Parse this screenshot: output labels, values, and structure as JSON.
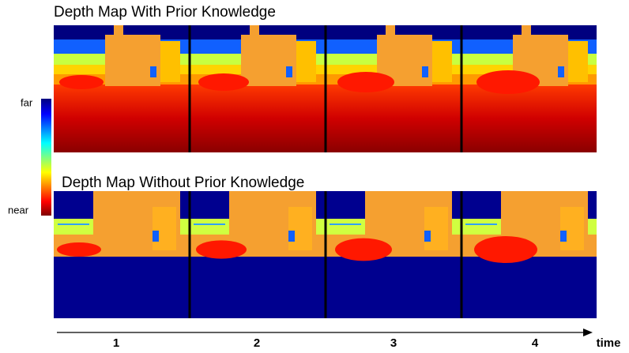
{
  "panels": [
    {
      "title": "Depth Map With Prior Knowledge"
    },
    {
      "title": "Depth Map Without Prior Knowledge"
    }
  ],
  "colorbar": {
    "far": "far",
    "near": "near"
  },
  "time_axis": {
    "label": "time",
    "frames": [
      "1",
      "2",
      "3",
      "4"
    ]
  }
}
